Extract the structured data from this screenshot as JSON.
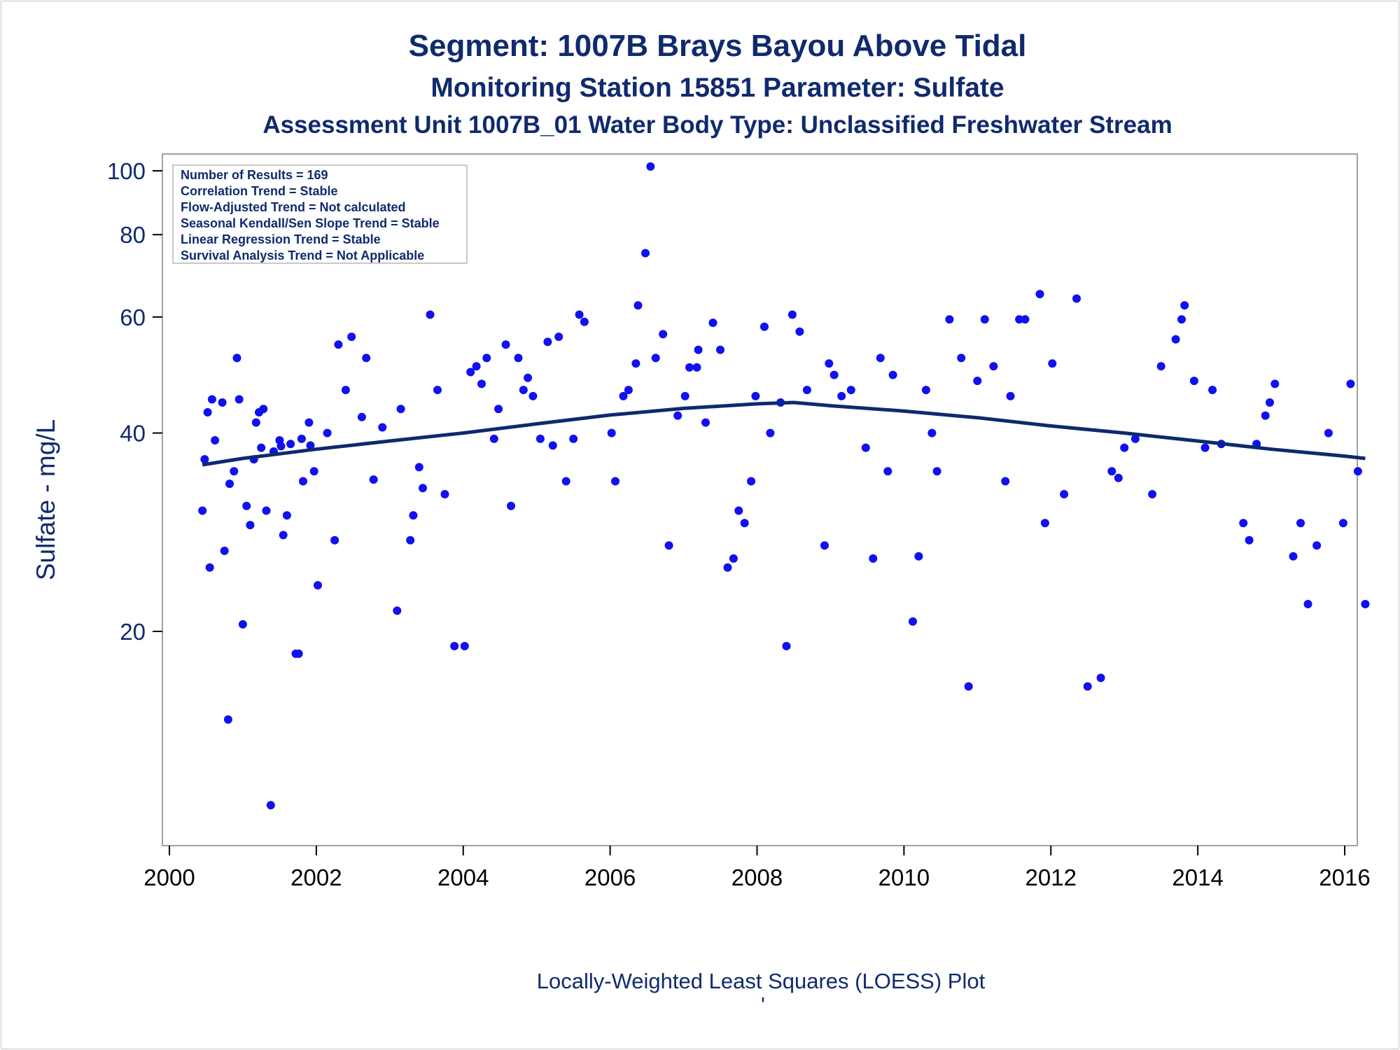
{
  "title": "Segment: 1007B  Brays Bayou Above Tidal",
  "subtitle": "Monitoring Station 15851 Parameter: Sulfate",
  "subtitle2": "Assessment Unit 1007B_01   Water Body Type: Unclassified Freshwater Stream",
  "footnote": "Locally-Weighted Least Squares (LOESS) Plot",
  "footnote_mark": "'",
  "stats": [
    "Number of Results = 169",
    "Correlation Trend = Stable",
    "Flow-Adjusted Trend = Not calculated",
    "Seasonal Kendall/Sen Slope Trend = Stable",
    "Linear Regression Trend = Stable",
    "Survival Analysis Trend = Not Applicable"
  ],
  "colors": {
    "points": "#1010f0",
    "loess": "#0d2a6e",
    "text": "#102a6e",
    "frame": "#a0a0a0"
  },
  "chart_data": {
    "type": "scatter",
    "xlabel": "",
    "ylabel": "Sulfate - mg/L",
    "xlim": [
      2000,
      2016
    ],
    "ylim": [
      10,
      105
    ],
    "yscale": "log",
    "x_ticks": [
      2000,
      2002,
      2004,
      2006,
      2008,
      2010,
      2012,
      2014,
      2016
    ],
    "y_ticks": [
      20,
      40,
      60,
      80,
      100
    ],
    "legend": "top-left",
    "grid": false,
    "points": [
      [
        2000.45,
        30.5
      ],
      [
        2000.48,
        36.5
      ],
      [
        2000.52,
        43
      ],
      [
        2000.55,
        25
      ],
      [
        2000.58,
        45
      ],
      [
        2000.62,
        39
      ],
      [
        2000.72,
        44.5
      ],
      [
        2000.75,
        26.5
      ],
      [
        2000.8,
        14.7
      ],
      [
        2000.82,
        33.5
      ],
      [
        2000.88,
        35
      ],
      [
        2000.92,
        52
      ],
      [
        2000.95,
        45
      ],
      [
        2001.0,
        20.5
      ],
      [
        2001.05,
        31
      ],
      [
        2001.1,
        29
      ],
      [
        2001.15,
        36.5
      ],
      [
        2001.18,
        41.5
      ],
      [
        2001.22,
        43
      ],
      [
        2001.25,
        38
      ],
      [
        2001.28,
        43.5
      ],
      [
        2001.32,
        30.5
      ],
      [
        2001.38,
        10.9
      ],
      [
        2001.42,
        37.5
      ],
      [
        2001.5,
        39
      ],
      [
        2001.52,
        38.2
      ],
      [
        2001.55,
        28
      ],
      [
        2001.6,
        30
      ],
      [
        2001.65,
        38.5
      ],
      [
        2001.72,
        18.5
      ],
      [
        2001.76,
        18.5
      ],
      [
        2001.8,
        39.2
      ],
      [
        2001.82,
        33.8
      ],
      [
        2001.9,
        41.5
      ],
      [
        2001.92,
        38.3
      ],
      [
        2001.97,
        35
      ],
      [
        2002.02,
        23.5
      ],
      [
        2002.15,
        40
      ],
      [
        2002.25,
        27.5
      ],
      [
        2002.3,
        54.5
      ],
      [
        2002.4,
        46.5
      ],
      [
        2002.48,
        56
      ],
      [
        2002.62,
        42.3
      ],
      [
        2002.68,
        52
      ],
      [
        2002.78,
        34
      ],
      [
        2002.9,
        40.8
      ],
      [
        2003.1,
        21.5
      ],
      [
        2003.15,
        43.5
      ],
      [
        2003.28,
        27.5
      ],
      [
        2003.32,
        30
      ],
      [
        2003.4,
        35.5
      ],
      [
        2003.45,
        33
      ],
      [
        2003.55,
        60.5
      ],
      [
        2003.65,
        46.5
      ],
      [
        2003.75,
        32.3
      ],
      [
        2003.88,
        19
      ],
      [
        2004.02,
        19
      ],
      [
        2004.1,
        49.5
      ],
      [
        2004.18,
        50.5
      ],
      [
        2004.25,
        47.5
      ],
      [
        2004.32,
        52
      ],
      [
        2004.42,
        39.2
      ],
      [
        2004.48,
        43.5
      ],
      [
        2004.58,
        54.5
      ],
      [
        2004.65,
        31
      ],
      [
        2004.75,
        52
      ],
      [
        2004.82,
        46.5
      ],
      [
        2004.88,
        48.5
      ],
      [
        2004.95,
        45.5
      ],
      [
        2005.05,
        39.2
      ],
      [
        2005.15,
        55
      ],
      [
        2005.22,
        38.3
      ],
      [
        2005.3,
        56
      ],
      [
        2005.4,
        33.8
      ],
      [
        2005.5,
        39.2
      ],
      [
        2005.58,
        60.5
      ],
      [
        2005.65,
        59
      ],
      [
        2006.02,
        40
      ],
      [
        2006.07,
        33.8
      ],
      [
        2006.18,
        45.5
      ],
      [
        2006.25,
        46.5
      ],
      [
        2006.35,
        51
      ],
      [
        2006.38,
        62.5
      ],
      [
        2006.48,
        75
      ],
      [
        2006.55,
        101.5
      ],
      [
        2006.62,
        52
      ],
      [
        2006.72,
        56.5
      ],
      [
        2006.8,
        27
      ],
      [
        2006.92,
        42.5
      ],
      [
        2007.02,
        45.5
      ],
      [
        2007.08,
        50.3
      ],
      [
        2007.18,
        50.3
      ],
      [
        2007.2,
        53.5
      ],
      [
        2007.3,
        41.5
      ],
      [
        2007.4,
        58.8
      ],
      [
        2007.5,
        53.5
      ],
      [
        2007.6,
        25
      ],
      [
        2007.68,
        25.8
      ],
      [
        2007.75,
        30.5
      ],
      [
        2007.83,
        29.2
      ],
      [
        2007.92,
        33.8
      ],
      [
        2007.98,
        45.5
      ],
      [
        2008.1,
        58
      ],
      [
        2008.18,
        40
      ],
      [
        2008.32,
        44.5
      ],
      [
        2008.4,
        19
      ],
      [
        2008.48,
        60.5
      ],
      [
        2008.58,
        57
      ],
      [
        2008.68,
        46.5
      ],
      [
        2008.92,
        27
      ],
      [
        2008.98,
        51
      ],
      [
        2009.05,
        49
      ],
      [
        2009.15,
        45.5
      ],
      [
        2009.28,
        46.5
      ],
      [
        2009.48,
        38
      ],
      [
        2009.58,
        25.8
      ],
      [
        2009.68,
        52
      ],
      [
        2009.78,
        35
      ],
      [
        2009.85,
        49
      ],
      [
        2010.12,
        20.7
      ],
      [
        2010.2,
        26
      ],
      [
        2010.3,
        46.5
      ],
      [
        2010.38,
        40
      ],
      [
        2010.45,
        35
      ],
      [
        2010.62,
        59.5
      ],
      [
        2010.78,
        52
      ],
      [
        2010.88,
        16.5
      ],
      [
        2011.0,
        48
      ],
      [
        2011.1,
        59.5
      ],
      [
        2011.22,
        50.5
      ],
      [
        2011.38,
        33.8
      ],
      [
        2011.45,
        45.5
      ],
      [
        2011.57,
        59.5
      ],
      [
        2011.65,
        59.5
      ],
      [
        2011.85,
        65
      ],
      [
        2011.92,
        29.2
      ],
      [
        2012.02,
        51
      ],
      [
        2012.18,
        32.3
      ],
      [
        2012.35,
        64
      ],
      [
        2012.5,
        16.5
      ],
      [
        2012.68,
        17
      ],
      [
        2012.83,
        35
      ],
      [
        2012.92,
        34.2
      ],
      [
        2013.0,
        38
      ],
      [
        2013.15,
        39.2
      ],
      [
        2013.38,
        32.3
      ],
      [
        2013.5,
        50.5
      ],
      [
        2013.7,
        55.5
      ],
      [
        2013.78,
        59.5
      ],
      [
        2013.82,
        62.5
      ],
      [
        2013.95,
        48
      ],
      [
        2014.1,
        38
      ],
      [
        2014.2,
        46.5
      ],
      [
        2014.32,
        38.5
      ],
      [
        2014.62,
        29.2
      ],
      [
        2014.7,
        27.5
      ],
      [
        2014.8,
        38.5
      ],
      [
        2014.92,
        42.5
      ],
      [
        2014.98,
        44.5
      ],
      [
        2015.05,
        47.5
      ],
      [
        2015.3,
        26
      ],
      [
        2015.4,
        29.2
      ],
      [
        2015.5,
        22
      ],
      [
        2015.62,
        27
      ],
      [
        2015.78,
        40
      ],
      [
        2015.98,
        29.2
      ],
      [
        2016.08,
        47.5
      ],
      [
        2016.18,
        35
      ],
      [
        2016.28,
        22
      ]
    ],
    "loess": [
      [
        2000.45,
        35.8
      ],
      [
        2001.0,
        36.6
      ],
      [
        2002.0,
        37.8
      ],
      [
        2003.0,
        38.9
      ],
      [
        2004.0,
        40.0
      ],
      [
        2005.0,
        41.3
      ],
      [
        2006.0,
        42.6
      ],
      [
        2007.0,
        43.6
      ],
      [
        2008.0,
        44.3
      ],
      [
        2008.5,
        44.5
      ],
      [
        2009.0,
        44.0
      ],
      [
        2010.0,
        43.2
      ],
      [
        2011.0,
        42.2
      ],
      [
        2012.0,
        41.0
      ],
      [
        2013.0,
        40.0
      ],
      [
        2014.0,
        38.9
      ],
      [
        2015.0,
        37.8
      ],
      [
        2016.0,
        36.9
      ],
      [
        2016.28,
        36.6
      ]
    ]
  }
}
